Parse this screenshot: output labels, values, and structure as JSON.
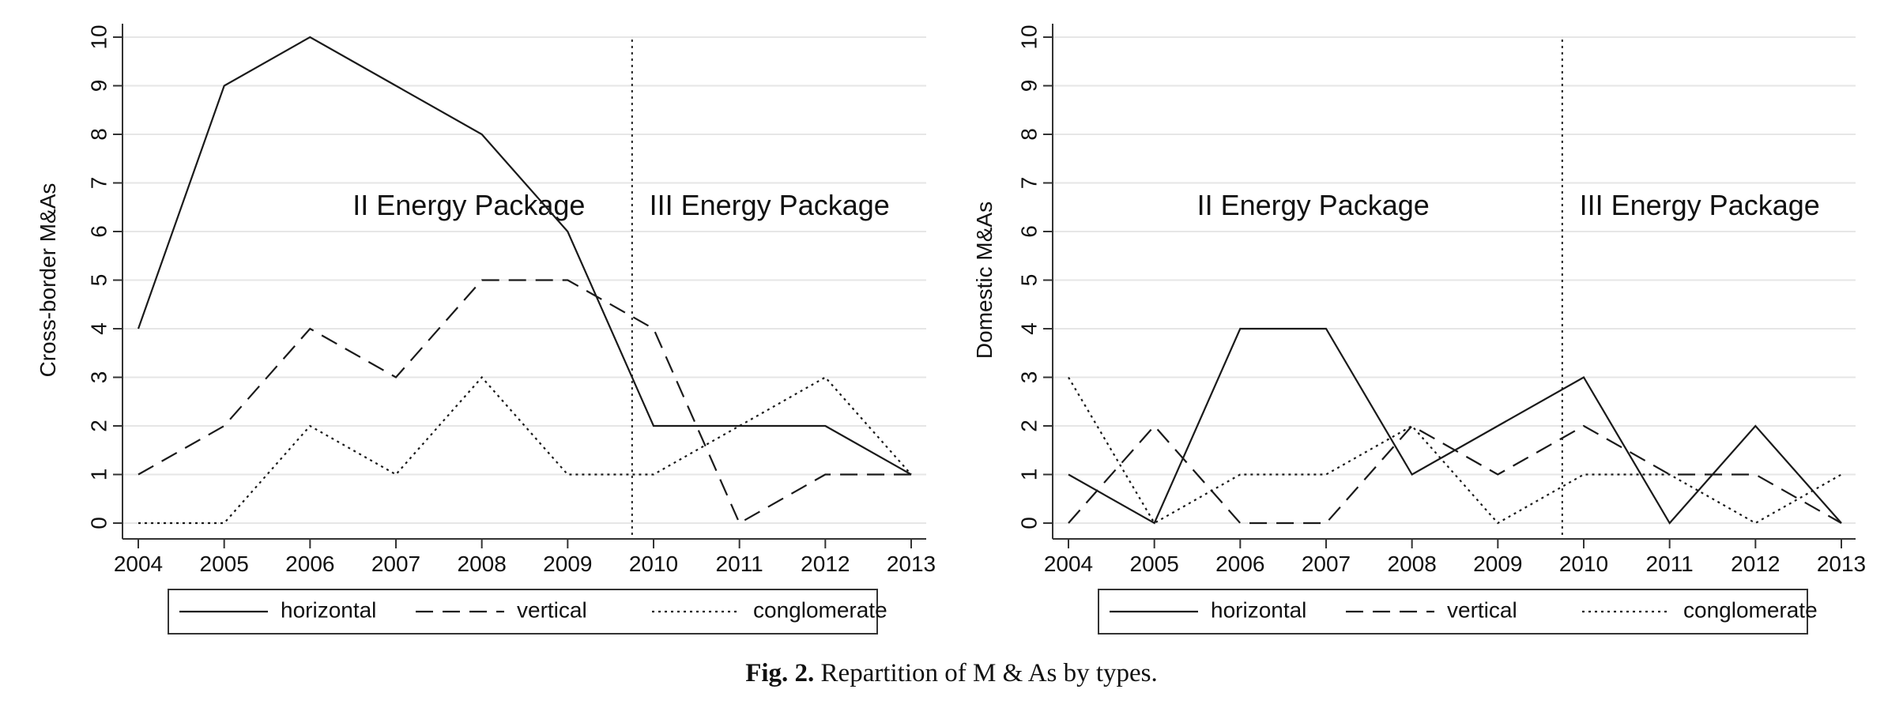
{
  "chart_data": [
    {
      "type": "line",
      "ylabel": "Cross-border M&As",
      "x": [
        2004,
        2005,
        2006,
        2007,
        2008,
        2009,
        2010,
        2011,
        2012,
        2013
      ],
      "ylim": [
        0,
        10
      ],
      "yticks": [
        0,
        1,
        2,
        3,
        4,
        5,
        6,
        7,
        8,
        9,
        10
      ],
      "grid": "horizontal",
      "vline_x": 2009.75,
      "annotations": [
        {
          "text": "II Energy Package",
          "x": 2007.85,
          "y": 6.5
        },
        {
          "text": "III Energy Package",
          "x": 2011.35,
          "y": 6.5
        }
      ],
      "series": [
        {
          "name": "horizontal",
          "style": "solid",
          "values": [
            4,
            9,
            10,
            9,
            8,
            6,
            2,
            2,
            2,
            1
          ]
        },
        {
          "name": "vertical",
          "style": "dashed",
          "values": [
            1,
            2,
            4,
            3,
            5,
            5,
            4,
            0,
            1,
            1
          ]
        },
        {
          "name": "conglomerate",
          "style": "dotted",
          "values": [
            0,
            0,
            2,
            1,
            3,
            1,
            1,
            2,
            3,
            1
          ]
        }
      ],
      "legend_position": "bottom"
    },
    {
      "type": "line",
      "ylabel": "Domestic M&As",
      "x": [
        2004,
        2005,
        2006,
        2007,
        2008,
        2009,
        2010,
        2011,
        2012,
        2013
      ],
      "ylim": [
        0,
        10
      ],
      "yticks": [
        0,
        1,
        2,
        3,
        4,
        5,
        6,
        7,
        8,
        9,
        10
      ],
      "grid": "horizontal",
      "vline_x": 2009.75,
      "annotations": [
        {
          "text": "II Energy Package",
          "x": 2006.85,
          "y": 6.5
        },
        {
          "text": "III Energy Package",
          "x": 2011.35,
          "y": 6.5
        }
      ],
      "series": [
        {
          "name": "horizontal",
          "style": "solid",
          "values": [
            1,
            0,
            4,
            4,
            1,
            2,
            3,
            0,
            2,
            0
          ]
        },
        {
          "name": "vertical",
          "style": "dashed",
          "values": [
            0,
            2,
            0,
            0,
            2,
            1,
            2,
            1,
            1,
            0
          ]
        },
        {
          "name": "conglomerate",
          "style": "dotted",
          "values": [
            3,
            0,
            1,
            1,
            2,
            0,
            1,
            1,
            0,
            1
          ]
        }
      ],
      "legend_position": "bottom"
    }
  ],
  "caption": {
    "label": "Fig. 2.",
    "text": " Repartition of M & As by types."
  }
}
